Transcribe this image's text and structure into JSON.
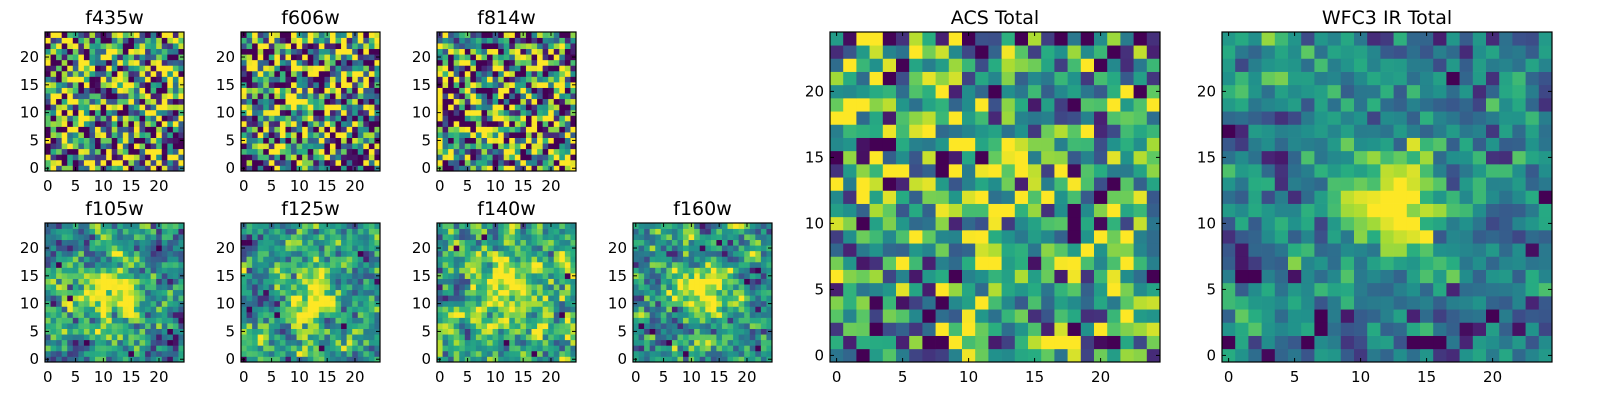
{
  "chart_data": [
    {
      "type": "heatmap",
      "title": "f435w",
      "colormap": "viridis",
      "grid_size": [
        25,
        25
      ],
      "xlim": [
        -0.5,
        24.5
      ],
      "ylim": [
        -0.5,
        24.5
      ],
      "xticks": [
        0,
        5,
        10,
        15,
        20
      ],
      "yticks": [
        0,
        5,
        10,
        15,
        20
      ],
      "seed": 11,
      "noise_level": 1.0,
      "smooth_strength": 0.0,
      "blob": null,
      "dark_spots": [
        [
          3,
          22
        ],
        [
          8,
          16
        ],
        [
          12,
          5
        ],
        [
          20,
          8
        ],
        [
          15,
          3
        ],
        [
          21,
          2
        ],
        [
          5,
          10
        ]
      ],
      "bright_spots": [
        [
          11,
          3
        ],
        [
          14,
          2
        ],
        [
          7,
          19
        ]
      ],
      "value_bias": 0.52,
      "contrast": 1.25
    },
    {
      "type": "heatmap",
      "title": "f606w",
      "colormap": "viridis",
      "grid_size": [
        25,
        25
      ],
      "xlim": [
        -0.5,
        24.5
      ],
      "ylim": [
        -0.5,
        24.5
      ],
      "xticks": [
        0,
        5,
        10,
        15,
        20
      ],
      "yticks": [
        0,
        5,
        10,
        15,
        20
      ],
      "seed": 27,
      "noise_level": 1.0,
      "smooth_strength": 0.0,
      "blob": null,
      "dark_spots": [
        [
          2,
          20
        ],
        [
          6,
          12
        ],
        [
          14,
          17
        ],
        [
          19,
          5
        ],
        [
          10,
          2
        ],
        [
          23,
          0
        ],
        [
          4,
          3
        ],
        [
          17,
          22
        ]
      ],
      "bright_spots": [
        [
          12,
          9
        ],
        [
          8,
          22
        ]
      ],
      "value_bias": 0.5,
      "contrast": 1.25
    },
    {
      "type": "heatmap",
      "title": "f814w",
      "colormap": "viridis",
      "grid_size": [
        25,
        25
      ],
      "xlim": [
        -0.5,
        24.5
      ],
      "ylim": [
        -0.5,
        24.5
      ],
      "xticks": [
        0,
        5,
        10,
        15,
        20
      ],
      "yticks": [
        0,
        5,
        10,
        15,
        20
      ],
      "seed": 43,
      "noise_level": 1.0,
      "smooth_strength": 0.0,
      "blob": null,
      "dark_spots": [
        [
          13,
          23
        ],
        [
          21,
          18
        ],
        [
          3,
          14
        ],
        [
          9,
          8
        ],
        [
          16,
          4
        ],
        [
          1,
          1
        ],
        [
          22,
          10
        ],
        [
          6,
          2
        ]
      ],
      "bright_spots": [
        [
          11,
          13
        ],
        [
          18,
          20
        ]
      ],
      "value_bias": 0.5,
      "contrast": 1.25
    },
    {
      "type": "heatmap",
      "title": "f105w",
      "colormap": "viridis",
      "grid_size": [
        25,
        25
      ],
      "xlim": [
        -0.5,
        24.5
      ],
      "ylim": [
        -0.5,
        24.5
      ],
      "xticks": [
        0,
        5,
        10,
        15,
        20
      ],
      "yticks": [
        0,
        5,
        10,
        15,
        20
      ],
      "seed": 59,
      "noise_level": 0.75,
      "smooth_strength": 0.55,
      "blob": [
        12,
        12,
        3.5,
        0.55
      ],
      "dark_spots": [
        [
          2,
          17
        ],
        [
          20,
          20
        ],
        [
          22,
          5
        ],
        [
          7,
          3
        ],
        [
          15,
          1
        ],
        [
          4,
          11
        ]
      ],
      "bright_spots": [
        [
          12,
          12
        ],
        [
          11,
          13
        ]
      ],
      "value_bias": 0.5,
      "contrast": 1.2
    },
    {
      "type": "heatmap",
      "title": "f125w",
      "colormap": "viridis",
      "grid_size": [
        25,
        25
      ],
      "xlim": [
        -0.5,
        24.5
      ],
      "ylim": [
        -0.5,
        24.5
      ],
      "xticks": [
        0,
        5,
        10,
        15,
        20
      ],
      "yticks": [
        0,
        5,
        10,
        15,
        20
      ],
      "seed": 71,
      "noise_level": 0.75,
      "smooth_strength": 0.55,
      "blob": [
        12,
        11,
        3.5,
        0.55
      ],
      "dark_spots": [
        [
          1,
          21
        ],
        [
          6,
          8
        ],
        [
          14,
          2
        ],
        [
          21,
          19
        ],
        [
          18,
          6
        ],
        [
          0,
          0
        ]
      ],
      "bright_spots": [
        [
          12,
          11
        ],
        [
          13,
          12
        ]
      ],
      "value_bias": 0.52,
      "contrast": 1.2
    },
    {
      "type": "heatmap",
      "title": "f140w",
      "colormap": "viridis",
      "grid_size": [
        25,
        25
      ],
      "xlim": [
        -0.5,
        24.5
      ],
      "ylim": [
        -0.5,
        24.5
      ],
      "xticks": [
        0,
        5,
        10,
        15,
        20
      ],
      "yticks": [
        0,
        5,
        10,
        15,
        20
      ],
      "seed": 83,
      "noise_level": 0.75,
      "smooth_strength": 0.55,
      "blob": [
        12,
        12,
        4.0,
        0.5
      ],
      "dark_spots": [
        [
          23,
          15
        ],
        [
          22,
          8
        ],
        [
          3,
          20
        ],
        [
          12,
          3
        ],
        [
          17,
          1
        ],
        [
          8,
          22
        ]
      ],
      "bright_spots": [
        [
          3,
          8
        ],
        [
          9,
          14
        ],
        [
          18,
          4
        ]
      ],
      "value_bias": 0.58,
      "contrast": 1.2
    },
    {
      "type": "heatmap",
      "title": "f160w",
      "colormap": "viridis",
      "grid_size": [
        25,
        25
      ],
      "xlim": [
        -0.5,
        24.5
      ],
      "ylim": [
        -0.5,
        24.5
      ],
      "xticks": [
        0,
        5,
        10,
        15,
        20
      ],
      "yticks": [
        0,
        5,
        10,
        15,
        20
      ],
      "seed": 97,
      "noise_level": 0.75,
      "smooth_strength": 0.55,
      "blob": [
        12,
        12,
        3.5,
        0.55
      ],
      "dark_spots": [
        [
          1,
          6
        ],
        [
          3,
          5
        ],
        [
          6,
          3
        ],
        [
          9,
          1
        ],
        [
          20,
          14
        ],
        [
          22,
          2
        ],
        [
          15,
          21
        ]
      ],
      "bright_spots": [
        [
          12,
          12
        ],
        [
          13,
          11
        ]
      ],
      "value_bias": 0.5,
      "contrast": 1.2
    },
    {
      "type": "heatmap",
      "title": "ACS Total",
      "colormap": "viridis",
      "grid_size": [
        25,
        25
      ],
      "xlim": [
        -0.5,
        24.5
      ],
      "ylim": [
        -0.5,
        24.5
      ],
      "xticks": [
        0,
        5,
        10,
        15,
        20
      ],
      "yticks": [
        0,
        5,
        10,
        15,
        20
      ],
      "seed": 131,
      "noise_level": 0.9,
      "smooth_strength": 0.2,
      "blob": [
        12,
        14,
        3.0,
        0.3
      ],
      "dark_spots": [
        [
          8,
          15
        ],
        [
          11,
          15
        ],
        [
          18,
          9
        ],
        [
          24,
          6
        ],
        [
          4,
          13
        ],
        [
          7,
          1
        ],
        [
          17,
          24
        ],
        [
          10,
          24
        ],
        [
          4,
          21
        ],
        [
          3,
          2
        ],
        [
          18,
          10
        ]
      ],
      "bright_spots": [
        [
          12,
          14
        ],
        [
          14,
          12
        ],
        [
          19,
          17
        ],
        [
          2,
          19
        ],
        [
          6,
          23
        ],
        [
          20,
          2
        ]
      ],
      "value_bias": 0.54,
      "contrast": 1.05
    },
    {
      "type": "heatmap",
      "title": "WFC3 IR Total",
      "colormap": "viridis",
      "grid_size": [
        25,
        25
      ],
      "xlim": [
        -0.5,
        24.5
      ],
      "ylim": [
        -0.5,
        24.5
      ],
      "xticks": [
        0,
        5,
        10,
        15,
        20
      ],
      "yticks": [
        0,
        5,
        10,
        15,
        20
      ],
      "seed": 157,
      "noise_level": 0.65,
      "smooth_strength": 0.45,
      "blob": [
        12,
        12,
        2.8,
        0.7
      ],
      "dark_spots": [
        [
          1,
          6
        ],
        [
          2,
          6
        ],
        [
          7,
          3
        ],
        [
          7,
          2
        ],
        [
          6,
          1
        ],
        [
          14,
          1
        ],
        [
          15,
          1
        ],
        [
          16,
          1
        ],
        [
          0,
          1
        ],
        [
          0,
          17
        ],
        [
          24,
          12
        ],
        [
          17,
          21
        ],
        [
          20,
          3
        ]
      ],
      "bright_spots": [
        [
          12,
          12
        ],
        [
          13,
          13
        ],
        [
          12,
          11
        ]
      ],
      "value_bias": 0.42,
      "contrast": 0.95
    }
  ]
}
